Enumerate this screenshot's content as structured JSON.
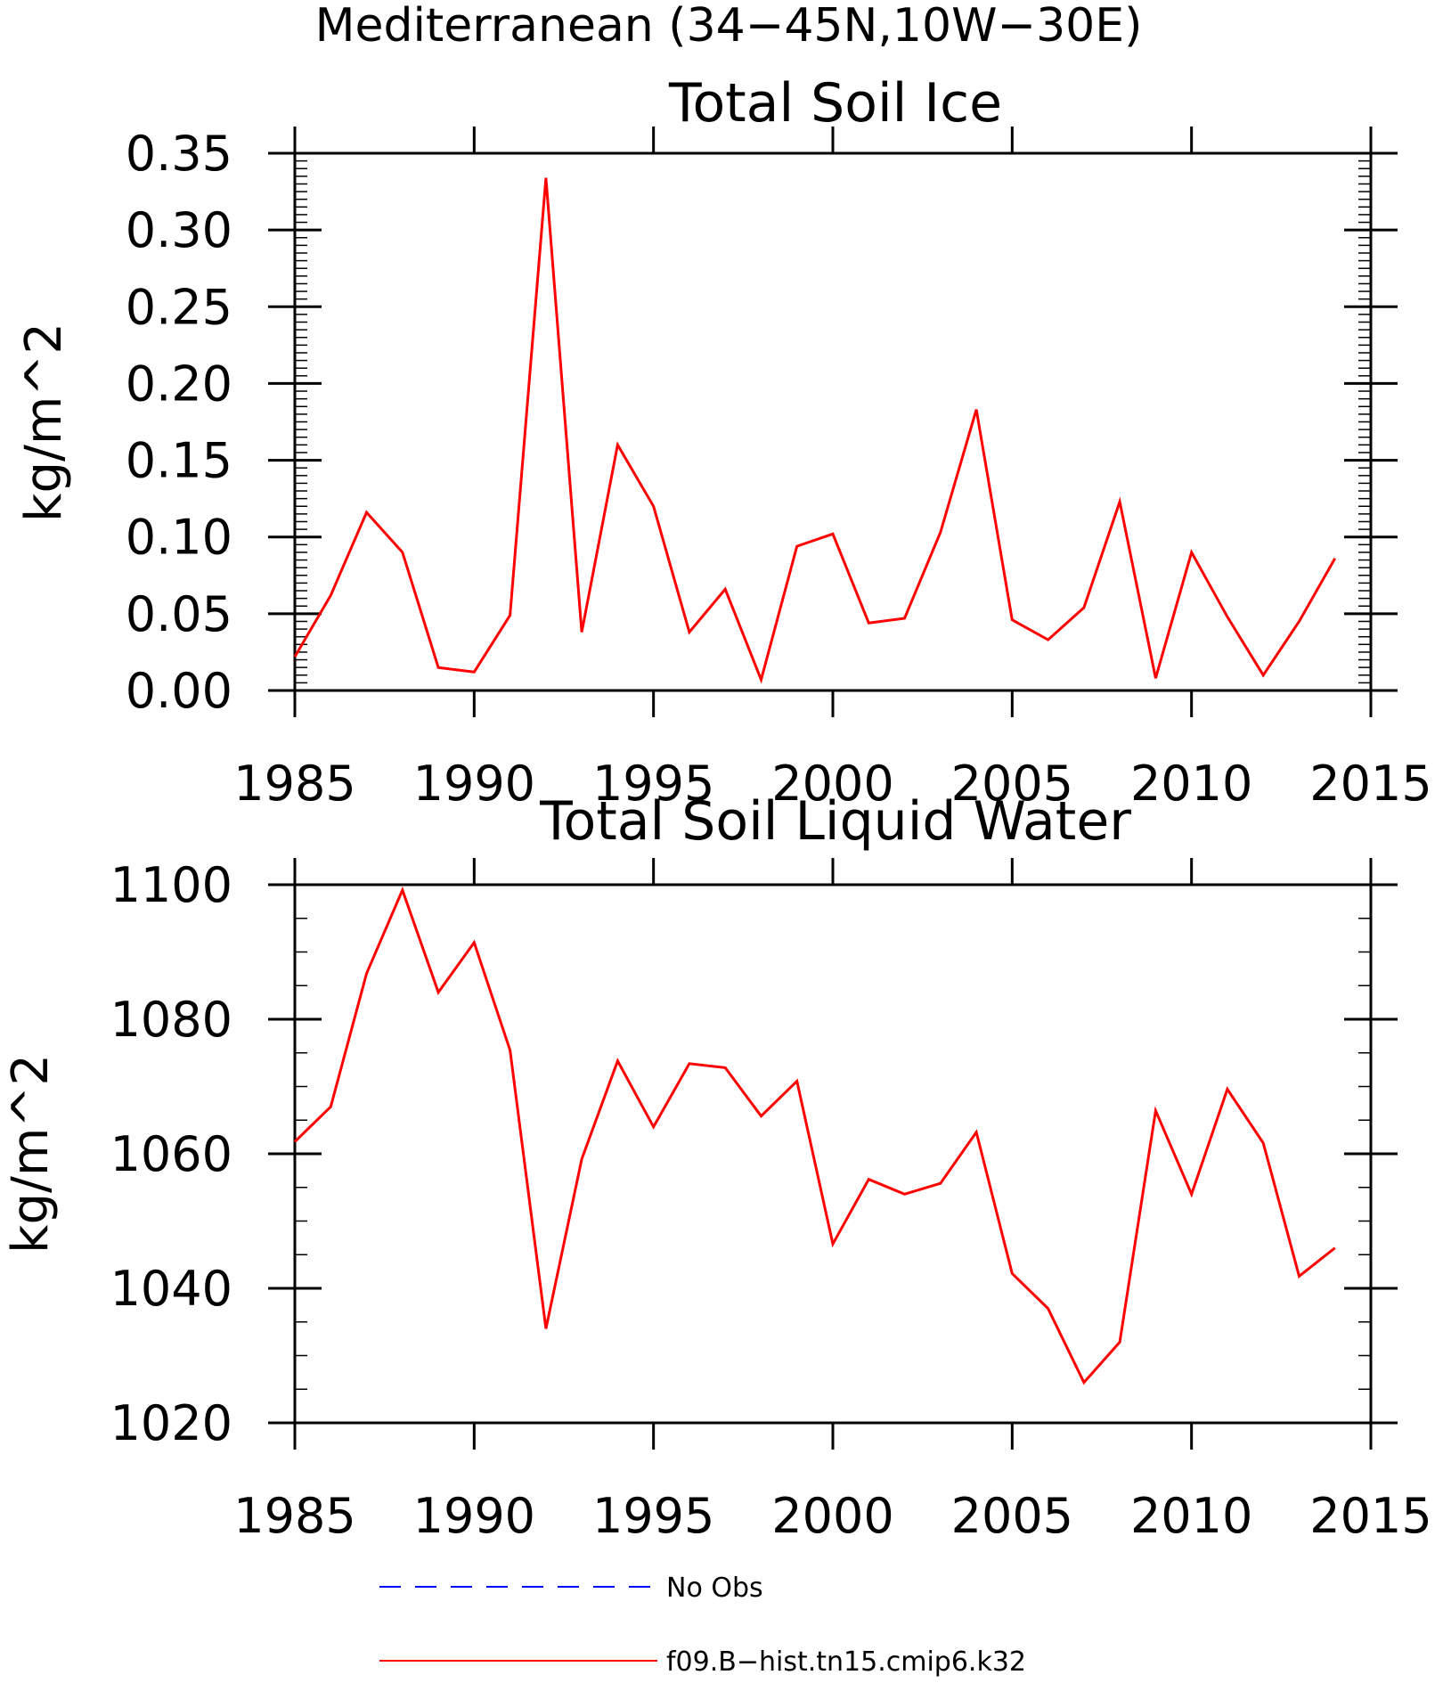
{
  "figure": {
    "title": "Mediterranean (34−45N,10W−30E)"
  },
  "chart_data": [
    {
      "type": "line",
      "title": "Total Soil Ice",
      "xlabel": "",
      "ylabel": "kg/m^2",
      "xlim": [
        1985,
        2015
      ],
      "ylim": [
        0,
        0.35
      ],
      "x_ticks": [
        "1985",
        "1990",
        "1995",
        "2000",
        "2005",
        "2010",
        "2015"
      ],
      "y_ticks": [
        "0.00",
        "0.05",
        "0.10",
        "0.15",
        "0.20",
        "0.25",
        "0.30",
        "0.35"
      ],
      "grid": false,
      "series": [
        {
          "name": "f09.B−hist.tn15.cmip6.k32",
          "color": "#ff0000",
          "x": [
            1985,
            1986,
            1987,
            1988,
            1989,
            1990,
            1991,
            1992,
            1993,
            1994,
            1995,
            1996,
            1997,
            1998,
            1999,
            2000,
            2001,
            2002,
            2003,
            2004,
            2005,
            2006,
            2007,
            2008,
            2009,
            2010,
            2011,
            2012,
            2013,
            2014
          ],
          "values": [
            0.022,
            0.062,
            0.116,
            0.09,
            0.015,
            0.012,
            0.049,
            0.334,
            0.038,
            0.16,
            0.12,
            0.038,
            0.066,
            0.007,
            0.094,
            0.102,
            0.044,
            0.047,
            0.103,
            0.183,
            0.046,
            0.033,
            0.054,
            0.123,
            0.008,
            0.09,
            0.048,
            0.01,
            0.045,
            0.086
          ]
        }
      ]
    },
    {
      "type": "line",
      "title": "Total Soil Liquid Water",
      "xlabel": "",
      "ylabel": "kg/m^2",
      "xlim": [
        1985,
        2015
      ],
      "ylim": [
        1020,
        1100
      ],
      "x_ticks": [
        "1985",
        "1990",
        "1995",
        "2000",
        "2005",
        "2010",
        "2015"
      ],
      "y_ticks": [
        "1020",
        "1040",
        "1060",
        "1080",
        "1100"
      ],
      "grid": false,
      "series": [
        {
          "name": "f09.B−hist.tn15.cmip6.k32",
          "color": "#ff0000",
          "x": [
            1985,
            1986,
            1987,
            1988,
            1989,
            1990,
            1991,
            1992,
            1993,
            1994,
            1995,
            1996,
            1997,
            1998,
            1999,
            2000,
            2001,
            2002,
            2003,
            2004,
            2005,
            2006,
            2007,
            2008,
            2009,
            2010,
            2011,
            2012,
            2013,
            2014
          ],
          "values": [
            1061.8,
            1067.0,
            1086.8,
            1099.2,
            1084.0,
            1091.4,
            1075.4,
            1034.0,
            1059.2,
            1073.8,
            1064.0,
            1073.4,
            1072.8,
            1065.6,
            1070.8,
            1046.6,
            1056.2,
            1054.0,
            1055.6,
            1063.2,
            1042.2,
            1037.0,
            1026.0,
            1032.0,
            1066.4,
            1054.0,
            1069.6,
            1061.6,
            1041.8,
            1046.0
          ]
        }
      ]
    }
  ],
  "legend": {
    "placement": "bottom",
    "entries": [
      {
        "label": "No Obs",
        "color": "#0000ff",
        "style": "dashed"
      },
      {
        "label": "f09.B−hist.tn15.cmip6.k32",
        "color": "#ff0000",
        "style": "solid"
      }
    ]
  }
}
